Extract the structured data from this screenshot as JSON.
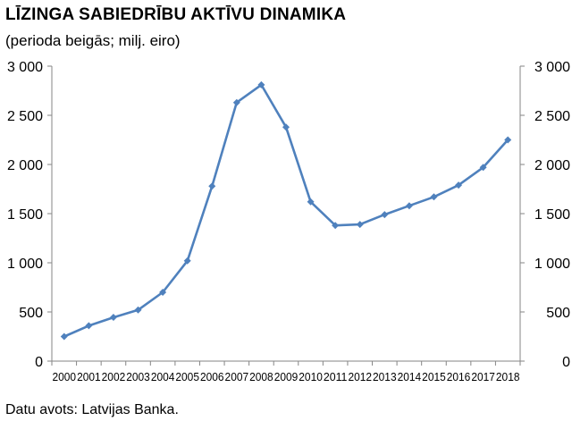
{
  "chart_data": {
    "type": "line",
    "title": "LĪZINGA SABIEDRĪBU AKTĪVU DINAMIKA",
    "subtitle": "(perioda beigās; milj. eiro)",
    "source": "Datu avots: Latvijas Banka.",
    "x": [
      "2000",
      "2001",
      "2002",
      "2003",
      "2004",
      "2005",
      "2006",
      "2007",
      "2008",
      "2009",
      "2010",
      "2011",
      "2012",
      "2013",
      "2014",
      "2015",
      "2016",
      "2017",
      "2018"
    ],
    "series": [
      {
        "values": [
          250,
          360,
          445,
          520,
          700,
          1020,
          1780,
          2630,
          2810,
          2380,
          1620,
          1380,
          1390,
          1490,
          1580,
          1670,
          1790,
          1970,
          2250
        ]
      }
    ],
    "ylim": [
      0,
      3000
    ],
    "yticks": [
      "0",
      "500",
      "1 000",
      "1 500",
      "2 000",
      "2 500",
      "3 000"
    ],
    "ytick_values": [
      0,
      500,
      1000,
      1500,
      2000,
      2500,
      3000
    ],
    "grid": false,
    "secondary_y_axis": true,
    "colors": {
      "line": "#4f81bd",
      "axis": "#868686"
    }
  }
}
